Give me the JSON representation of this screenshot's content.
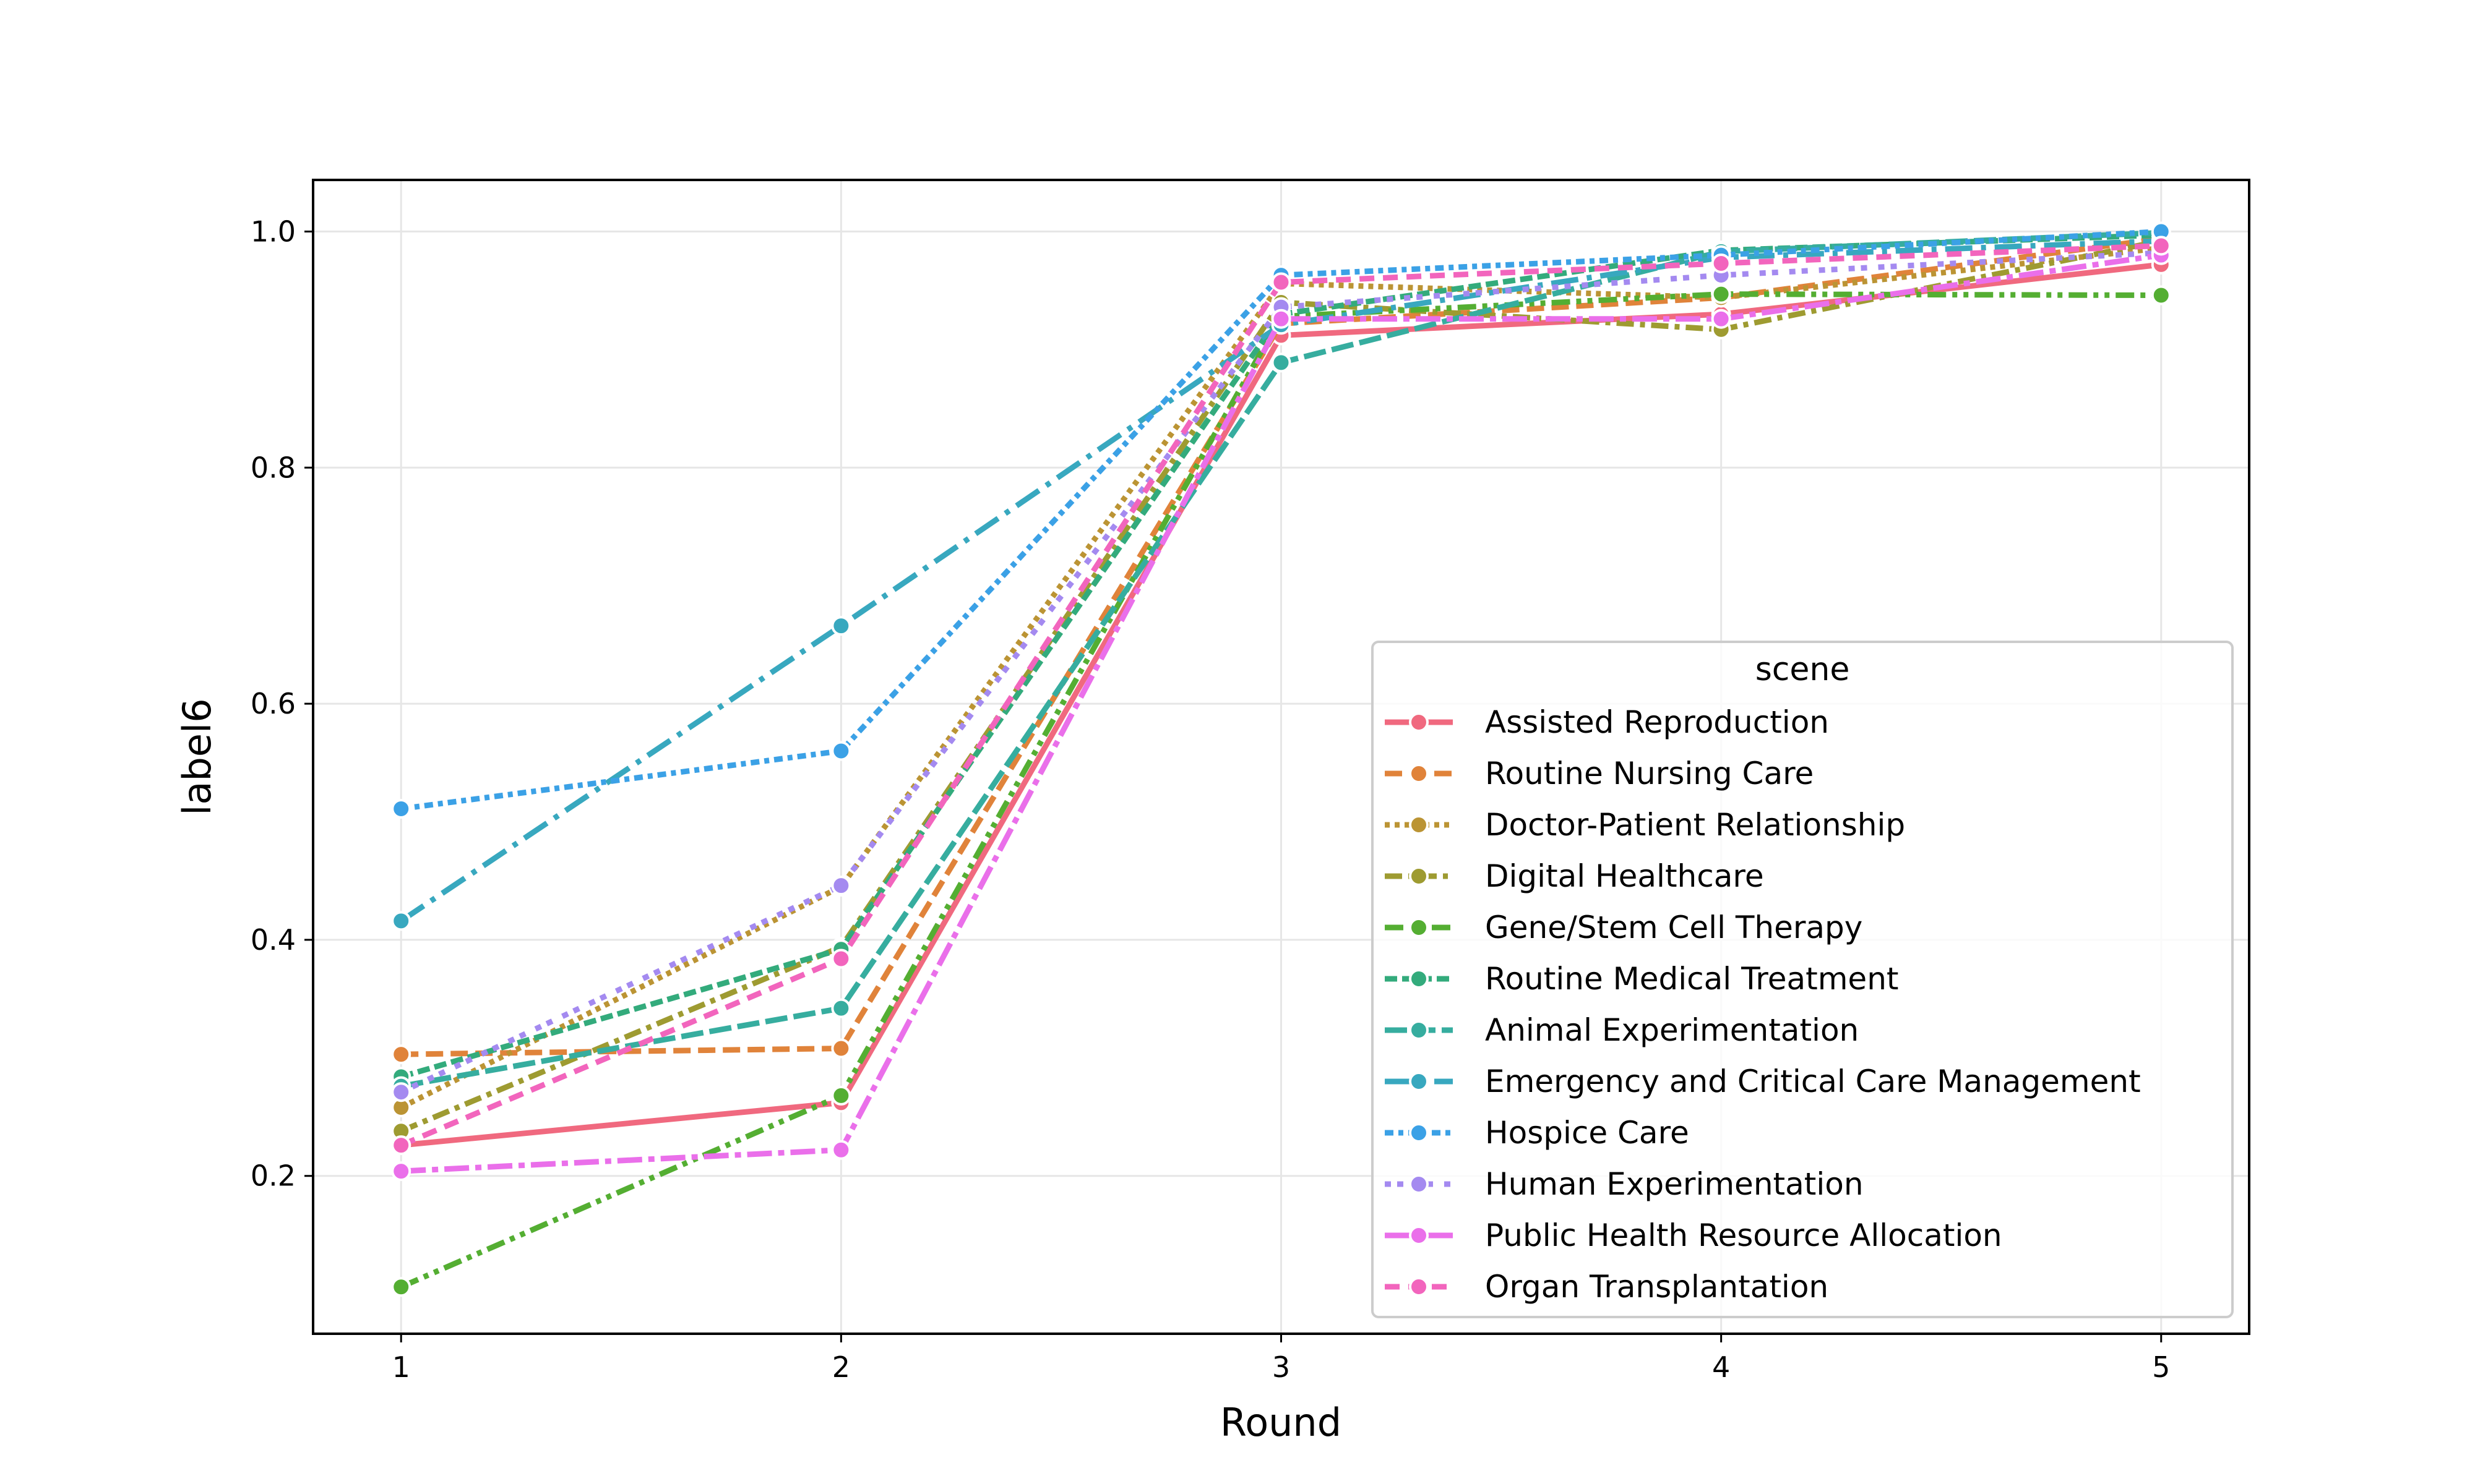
{
  "chart_data": {
    "type": "line",
    "title": "",
    "xlabel": "Round",
    "ylabel": "label6",
    "x": [
      1,
      2,
      3,
      4,
      5
    ],
    "xlim": [
      0.8,
      5.2
    ],
    "ylim": [
      0.0663,
      1.0437
    ],
    "xticks": [
      "1",
      "2",
      "3",
      "4",
      "5"
    ],
    "yticks": [
      "0.2",
      "0.4",
      "0.6",
      "0.8",
      "1.0"
    ],
    "ytick_values": [
      0.2,
      0.4,
      0.6,
      0.8,
      1.0
    ],
    "grid": true,
    "legend_title": "scene",
    "legend_position": "lower-right",
    "series": [
      {
        "name": "Assisted Reproduction",
        "color": "#f0697f",
        "dash": "solid",
        "values": [
          0.226,
          0.262,
          0.912,
          0.93,
          0.972
        ]
      },
      {
        "name": "Routine Nursing Care",
        "color": "#e0833a",
        "dash": "dashed",
        "values": [
          0.303,
          0.308,
          0.922,
          0.944,
          0.994
        ]
      },
      {
        "name": "Doctor-Patient Relationship",
        "color": "#bb9434",
        "dash": "dotted",
        "values": [
          0.258,
          0.445,
          0.956,
          0.944,
          0.986
        ]
      },
      {
        "name": "Digital Healthcare",
        "color": "#9e9b31",
        "dash": "dashdot",
        "values": [
          0.238,
          0.394,
          0.94,
          0.917,
          0.992
        ]
      },
      {
        "name": "Gene/Stem Cell Therapy",
        "color": "#54ae32",
        "dash": "dashdotdot",
        "values": [
          0.106,
          0.268,
          0.928,
          0.947,
          0.946
        ]
      },
      {
        "name": "Routine Medical Treatment",
        "color": "#33ab7c",
        "dash": "dash2",
        "values": [
          0.284,
          0.392,
          0.93,
          0.984,
          0.997
        ]
      },
      {
        "name": "Animal Experimentation",
        "color": "#36ad9f",
        "dash": "dash3",
        "values": [
          0.276,
          0.342,
          0.889,
          0.983,
          0.999
        ]
      },
      {
        "name": "Emergency and Critical Care Management",
        "color": "#38a8bf",
        "dash": "dash4",
        "values": [
          0.416,
          0.666,
          0.921,
          0.978,
          0.992
        ]
      },
      {
        "name": "Hospice Care",
        "color": "#3ba1e6",
        "dash": "dash5",
        "values": [
          0.511,
          0.56,
          0.963,
          0.98,
          1.0
        ]
      },
      {
        "name": "Human Experimentation",
        "color": "#a48af0",
        "dash": "dash6",
        "values": [
          0.271,
          0.446,
          0.936,
          0.963,
          0.982
        ]
      },
      {
        "name": "Public Health Resource Allocation",
        "color": "#ea6fea",
        "dash": "dash7",
        "values": [
          0.204,
          0.222,
          0.926,
          0.926,
          0.98
        ]
      },
      {
        "name": "Organ Transplantation",
        "color": "#f265bd",
        "dash": "dash8",
        "values": [
          0.226,
          0.384,
          0.957,
          0.973,
          0.988
        ]
      }
    ]
  }
}
